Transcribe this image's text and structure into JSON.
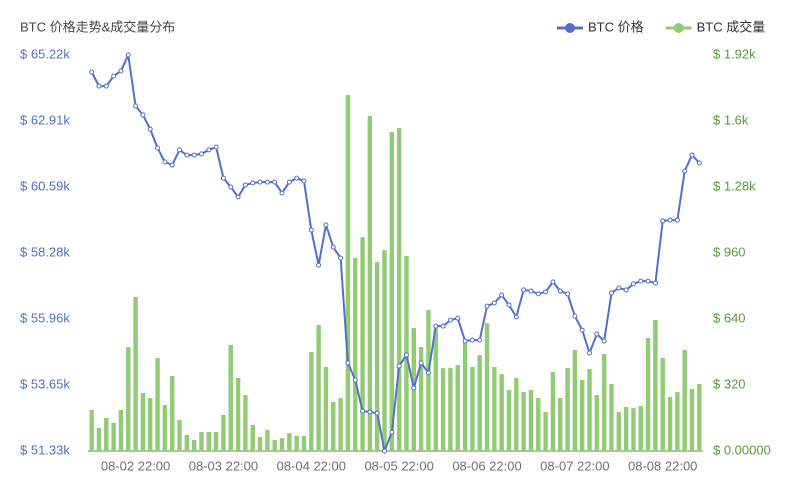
{
  "chart_data": {
    "type": "combo",
    "title": "BTC 价格走势&成交量分布",
    "legend": "top-right",
    "categories": [
      null,
      null,
      null,
      null,
      null,
      null,
      "08-02 22:00",
      null,
      null,
      null,
      null,
      null,
      null,
      null,
      null,
      null,
      null,
      null,
      "08-03 22:00",
      null,
      null,
      null,
      null,
      null,
      null,
      null,
      null,
      null,
      null,
      null,
      "08-04 22:00",
      null,
      null,
      null,
      null,
      null,
      null,
      null,
      null,
      null,
      null,
      null,
      "08-05 22:00",
      null,
      null,
      null,
      null,
      null,
      null,
      null,
      null,
      null,
      null,
      null,
      "08-06 22:00",
      null,
      null,
      null,
      null,
      null,
      null,
      null,
      null,
      null,
      null,
      null,
      "08-07 22:00",
      null,
      null,
      null,
      null,
      null,
      null,
      null,
      null,
      null,
      null,
      null,
      "08-08 22:00",
      null,
      null,
      null,
      null,
      null
    ],
    "ylim": [
      51330,
      65220
    ],
    "yticks": [
      {
        "value": 51330,
        "label": "$ 51.33k"
      },
      {
        "value": 53645,
        "label": "$ 53.65k"
      },
      {
        "value": 55960,
        "label": "$ 55.96k"
      },
      {
        "value": 58275,
        "label": "$ 58.28k"
      },
      {
        "value": 60590,
        "label": "$ 60.59k"
      },
      {
        "value": 62905,
        "label": "$ 62.91k"
      },
      {
        "value": 65220,
        "label": "$ 65.22k"
      }
    ],
    "y2lim": [
      0,
      1920
    ],
    "y2ticks": [
      {
        "value": 0,
        "label": "$ 0.00000"
      },
      {
        "value": 320,
        "label": "$ 320"
      },
      {
        "value": 640,
        "label": "$ 640"
      },
      {
        "value": 960,
        "label": "$ 960"
      },
      {
        "value": 1280,
        "label": "$ 1.28k"
      },
      {
        "value": 1600,
        "label": "$ 1.6k"
      },
      {
        "value": 1920,
        "label": "$ 1.92k"
      }
    ],
    "series": [
      {
        "name": "BTC 价格",
        "type": "line",
        "color": "#5470c6",
        "values": [
          64620,
          64130,
          64130,
          64480,
          64660,
          65220,
          63430,
          63120,
          62620,
          61960,
          61470,
          61360,
          61890,
          61710,
          61710,
          61750,
          61890,
          61990,
          60900,
          60590,
          60240,
          60660,
          60730,
          60760,
          60760,
          60760,
          60380,
          60760,
          60900,
          60800,
          59080,
          57850,
          59260,
          58480,
          58100,
          54420,
          53820,
          52730,
          52700,
          52660,
          51330,
          51990,
          54310,
          54700,
          53540,
          54420,
          54070,
          55710,
          55710,
          55920,
          55990,
          55190,
          55220,
          55220,
          56410,
          56520,
          56800,
          56450,
          56030,
          56980,
          56940,
          56840,
          56910,
          57260,
          56940,
          56840,
          56060,
          55570,
          54770,
          55430,
          55190,
          56870,
          57050,
          56980,
          57190,
          57290,
          57290,
          57220,
          59400,
          59430,
          59430,
          61150,
          61710,
          61430
        ]
      },
      {
        "name": "BTC 成交量",
        "type": "bar",
        "axis": "y2",
        "color": "#91cc75",
        "values": [
          199,
          112,
          160,
          136,
          199,
          504,
          747,
          281,
          257,
          451,
          223,
          364,
          150,
          78,
          53,
          92,
          92,
          92,
          175,
          514,
          354,
          271,
          126,
          68,
          102,
          53,
          63,
          87,
          73,
          73,
          480,
          611,
          407,
          238,
          257,
          1726,
          936,
          1037,
          1624,
          916,
          974,
          1546,
          1566,
          945,
          596,
          504,
          684,
          596,
          402,
          402,
          417,
          538,
          407,
          465,
          620,
          407,
          373,
          296,
          354,
          286,
          296,
          257,
          189,
          383,
          257,
          402,
          490,
          344,
          398,
          271,
          470,
          325,
          189,
          213,
          208,
          218,
          548,
          635,
          451,
          262,
          286,
          490,
          301,
          325
        ]
      }
    ]
  }
}
